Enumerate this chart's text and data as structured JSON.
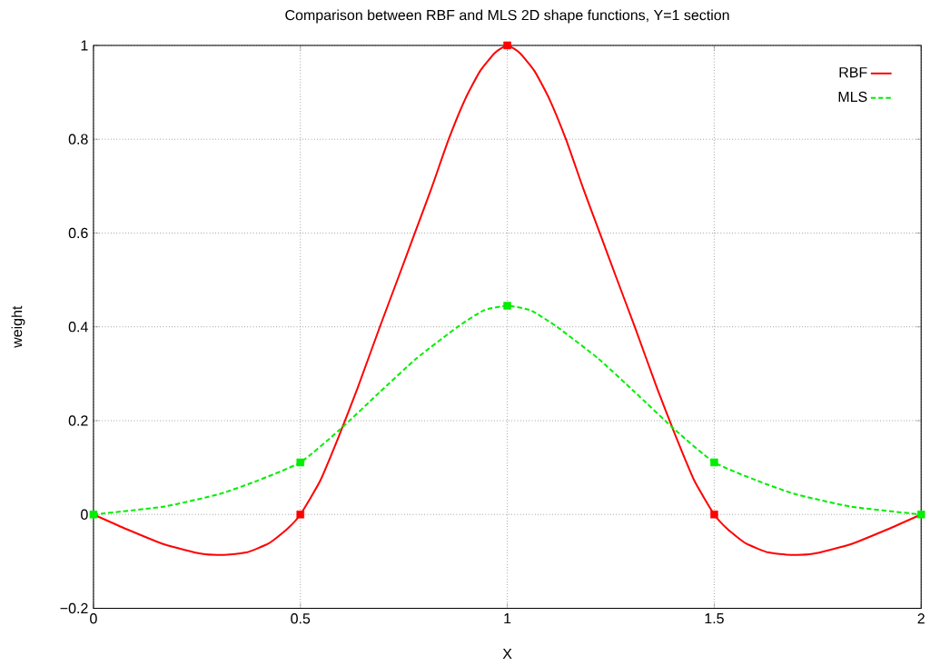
{
  "chart_data": {
    "type": "line",
    "title": "Comparison between RBF and MLS 2D shape functions, Y=1 section",
    "xlabel": "X",
    "ylabel": "weight",
    "xlim": [
      0,
      2
    ],
    "ylim": [
      -0.2,
      1
    ],
    "xticks": [
      0,
      0.5,
      1,
      1.5,
      2
    ],
    "yticks": [
      {
        "value": -0.2,
        "label": "−0.2"
      },
      0,
      0.2,
      0.4,
      0.6,
      0.8,
      1
    ],
    "grid": true,
    "legend": "top right",
    "series": [
      {
        "name": "RBF",
        "color": "#ff0000",
        "line_style": "solid",
        "marker": "none",
        "x": [
          0,
          0.082,
          0.172,
          0.262,
          0.315,
          0.369,
          0.423,
          0.468,
          0.5,
          0.548,
          0.593,
          0.638,
          0.692,
          0.737,
          0.777,
          0.817,
          0.858,
          0.898,
          0.934,
          0.97,
          1,
          1.03,
          1.066,
          1.102,
          1.142,
          1.183,
          1.223,
          1.263,
          1.308,
          1.362,
          1.407,
          1.452,
          1.5,
          1.532,
          1.577,
          1.631,
          1.685,
          1.738,
          1.828,
          1.918,
          2
        ],
        "values": [
          0,
          -0.032,
          -0.064,
          -0.084,
          -0.086,
          -0.081,
          -0.062,
          -0.031,
          0,
          0.072,
          0.167,
          0.269,
          0.4,
          0.506,
          0.601,
          0.696,
          0.799,
          0.885,
          0.945,
          0.984,
          1,
          0.984,
          0.945,
          0.885,
          0.799,
          0.696,
          0.601,
          0.506,
          0.4,
          0.269,
          0.167,
          0.072,
          0,
          -0.031,
          -0.062,
          -0.081,
          -0.086,
          -0.084,
          -0.064,
          -0.032,
          0
        ]
      },
      {
        "name": "MLS",
        "color": "#00ee00",
        "line_style": "dashed",
        "marker": "none",
        "x": [
          0,
          0.172,
          0.306,
          0.396,
          0.5,
          0.593,
          0.692,
          0.781,
          0.88,
          0.943,
          1,
          1.057,
          1.12,
          1.219,
          1.308,
          1.407,
          1.5,
          1.604,
          1.694,
          1.828,
          2
        ],
        "values": [
          0,
          0.017,
          0.044,
          0.072,
          0.111,
          0.179,
          0.261,
          0.333,
          0.4,
          0.435,
          0.445,
          0.435,
          0.4,
          0.333,
          0.261,
          0.179,
          0.111,
          0.072,
          0.044,
          0.017,
          0
        ]
      },
      {
        "type": "scatter",
        "color": "#ff0000",
        "marker": "square",
        "x": [
          0.5,
          1,
          1.5
        ],
        "values": [
          0,
          1,
          0
        ]
      },
      {
        "type": "scatter",
        "color": "#00ee00",
        "marker": "square",
        "x": [
          0,
          0.5,
          1,
          1.5,
          2
        ],
        "values": [
          0,
          0.111,
          0.445,
          0.111,
          0
        ]
      }
    ]
  }
}
